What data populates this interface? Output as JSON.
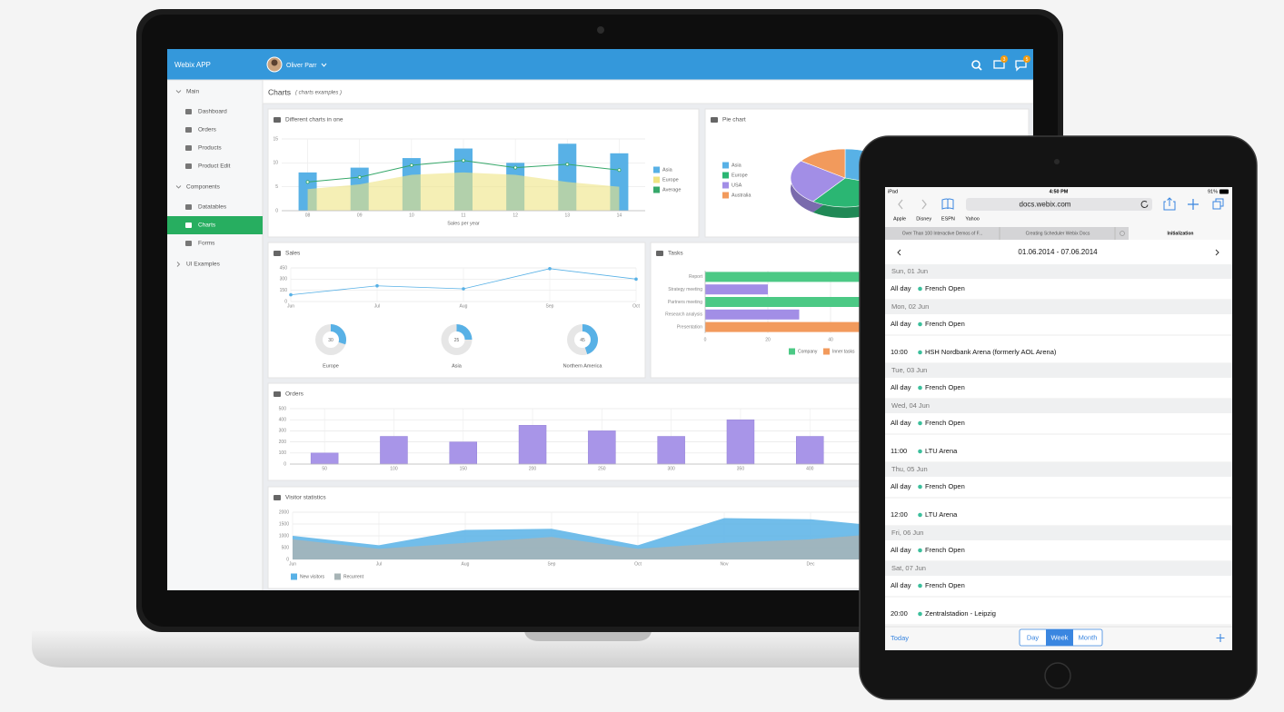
{
  "laptop": {
    "header": {
      "brand": "Webix APP",
      "user": "Oliver Parr",
      "mail_badge": "3",
      "chat_badge": "5"
    },
    "sidebar": [
      {
        "label": "Main",
        "items": [
          "Dashboard",
          "Orders",
          "Products",
          "Product Edit"
        ]
      },
      {
        "label": "Components",
        "items": [
          "Datatables",
          "Charts",
          "Forms"
        ]
      },
      {
        "label": "UI Examples",
        "items": []
      }
    ],
    "page": {
      "title": "Charts",
      "subtitle": "( charts examples )"
    },
    "combo": {
      "type": "bar",
      "title": "Different charts in one",
      "categories": [
        "08",
        "09",
        "10",
        "11",
        "12",
        "13",
        "14"
      ],
      "series": [
        {
          "name": "Asia",
          "type": "bar",
          "color": "#58b1e6",
          "values": [
            8,
            9,
            11,
            13,
            10,
            14,
            12
          ]
        },
        {
          "name": "Europe",
          "type": "area",
          "color": "#efe483",
          "values": [
            4.5,
            5.5,
            7.5,
            8,
            7.5,
            6,
            5
          ]
        },
        {
          "name": "Average",
          "type": "line",
          "color": "#36a86a",
          "values": [
            6,
            7,
            9.5,
            10.5,
            9,
            9.7,
            8.5
          ]
        }
      ],
      "ylim": [
        0,
        15
      ],
      "yticks": [
        0,
        5,
        10,
        15
      ],
      "xlabel": "Sales per year"
    },
    "pie": {
      "type": "pie",
      "title": "Pie chart",
      "categories": [
        "Asia",
        "Europe",
        "USA",
        "Australia"
      ],
      "values": [
        30,
        30,
        25,
        15
      ],
      "colors": [
        "#58b1e6",
        "#2bb673",
        "#a28ee6",
        "#f29a5c"
      ]
    },
    "sales": {
      "type": "line",
      "title": "Sales",
      "categories": [
        "Jun",
        "Jul",
        "Aug",
        "Sep",
        "Oct"
      ],
      "values": [
        90,
        210,
        170,
        440,
        300
      ],
      "color": "#58b1e6",
      "ylim": [
        0,
        450
      ],
      "yticks": [
        0,
        150,
        300,
        450
      ]
    },
    "shares": {
      "type": "donut",
      "categories": [
        "Europe",
        "Asia",
        "Northern America"
      ],
      "values": [
        30,
        25,
        45
      ],
      "color": "#58b1e6"
    },
    "tasks": {
      "type": "bar",
      "horizontal": true,
      "title": "Tasks",
      "categories": [
        "Report",
        "Strategy meeting",
        "Partners meeting",
        "Research analysis",
        "Presentation"
      ],
      "values": [
        60,
        20,
        60,
        30,
        55
      ],
      "colors": [
        "#4cc985",
        "#a28ee6",
        "#4cc985",
        "#a28ee6",
        "#f29a5c"
      ],
      "legend": [
        {
          "name": "Company",
          "color": "#4cc985"
        },
        {
          "name": "Inner tasks",
          "color": "#f29a5c"
        }
      ],
      "xlim": [
        0,
        80
      ],
      "xticks": [
        0,
        20,
        40,
        60,
        80
      ]
    },
    "orders": {
      "type": "bar",
      "title": "Orders",
      "categories": [
        "50",
        "100",
        "150",
        "200",
        "250",
        "300",
        "350",
        "400"
      ],
      "values": [
        100,
        250,
        200,
        350,
        300,
        250,
        400,
        250
      ],
      "color": "#a895e8",
      "ylim": [
        0,
        500
      ],
      "yticks": [
        0,
        100,
        200,
        300,
        400,
        500
      ]
    },
    "visitors": {
      "type": "area",
      "title": "Visitor statistics",
      "categories": [
        "Jun",
        "Jul",
        "Aug",
        "Sep",
        "Oct",
        "Nov",
        "Dec",
        null
      ],
      "series": [
        {
          "name": "New visitors",
          "color": "#58b1e6",
          "values": [
            1000,
            600,
            1250,
            1300,
            600,
            1750,
            1700,
            1350
          ]
        },
        {
          "name": "Recurrent",
          "color": "#a7b4b6",
          "values": [
            850,
            450,
            700,
            950,
            450,
            700,
            850,
            1150
          ]
        }
      ],
      "ylim": [
        0,
        2000
      ],
      "yticks": [
        0,
        500,
        1000,
        1500,
        2000
      ]
    }
  },
  "tablet": {
    "status": {
      "carrier": "iPad",
      "time": "4:50 PM",
      "battery": "91%"
    },
    "url": "docs.webix.com",
    "bookmarks": [
      "Apple",
      "Disney",
      "ESPN",
      "Yahoo"
    ],
    "tabs": [
      "Over Than 100 Interactive Demos of F...",
      "Creating Scheduler Webix Docs",
      "Initialization"
    ],
    "range": "01.06.2014 - 07.06.2014",
    "days": [
      {
        "day": "Sun, 01 Jun",
        "events": [
          {
            "time": "All day",
            "text": "French Open"
          }
        ]
      },
      {
        "day": "Mon, 02 Jun",
        "events": [
          {
            "time": "All day",
            "text": "French Open"
          },
          {
            "time": "10:00",
            "text": "HSH Nordbank Arena (formerly AOL Arena)"
          }
        ]
      },
      {
        "day": "Tue, 03 Jun",
        "events": [
          {
            "time": "All day",
            "text": "French Open"
          }
        ]
      },
      {
        "day": "Wed, 04 Jun",
        "events": [
          {
            "time": "All day",
            "text": "French Open"
          },
          {
            "time": "11:00",
            "text": "LTU Arena"
          }
        ]
      },
      {
        "day": "Thu, 05 Jun",
        "events": [
          {
            "time": "All day",
            "text": "French Open"
          },
          {
            "time": "12:00",
            "text": "LTU Arena"
          }
        ]
      },
      {
        "day": "Fri, 06 Jun",
        "events": [
          {
            "time": "All day",
            "text": "French Open"
          }
        ]
      },
      {
        "day": "Sat, 07 Jun",
        "events": [
          {
            "time": "All day",
            "text": "French Open"
          },
          {
            "time": "20:00",
            "text": "Zentralstadion - Leipzig"
          }
        ]
      }
    ],
    "footer": {
      "today": "Today",
      "views": [
        "Day",
        "Week",
        "Month"
      ]
    }
  }
}
